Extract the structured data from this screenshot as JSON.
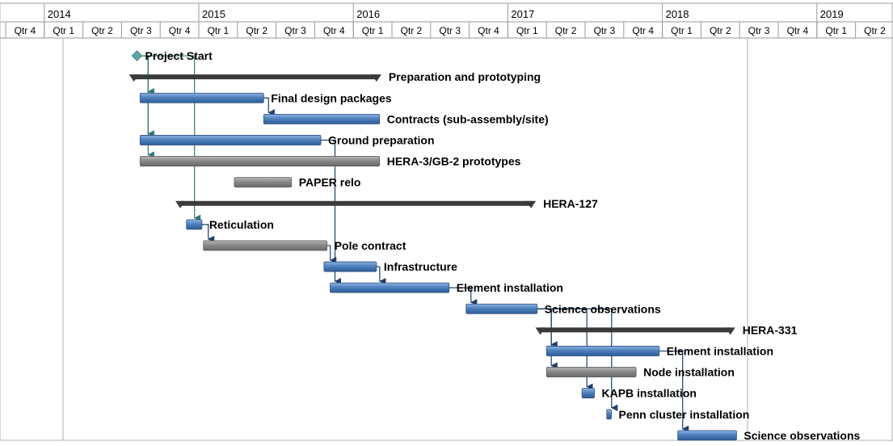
{
  "chart_data": {
    "type": "gantt",
    "title": "",
    "timescale": {
      "years": [
        "2014",
        "2015",
        "2016",
        "2017",
        "2018",
        "2019"
      ],
      "quarters": [
        "Qtr 4",
        "Qtr 1",
        "Qtr 2",
        "Qtr 3",
        "Qtr 4",
        "Qtr 1",
        "Qtr 2",
        "Qtr 3",
        "Qtr 4",
        "Qtr 1",
        "Qtr 2",
        "Qtr 3",
        "Qtr 4",
        "Qtr 1",
        "Qtr 2",
        "Qtr 3",
        "Qtr 4",
        "Qtr 1",
        "Qtr 2",
        "Qtr 3",
        "Qtr 4",
        "Qtr 1",
        "Qtr 2"
      ],
      "range_start": "2013-10",
      "range_end": "2019-07"
    },
    "tasks": [
      {
        "id": 0,
        "name": "Project Start",
        "type": "milestone",
        "start": 2014.6
      },
      {
        "id": 1,
        "name": "Preparation and prototyping",
        "type": "summary",
        "start": 2014.58,
        "end": 2016.15
      },
      {
        "id": 2,
        "name": "Final design packages",
        "type": "task",
        "start": 2014.62,
        "end": 2015.42,
        "color": "blue"
      },
      {
        "id": 3,
        "name": "Contracts (sub-assembly/site)",
        "type": "task",
        "start": 2015.42,
        "end": 2016.17,
        "color": "blue"
      },
      {
        "id": 4,
        "name": "Ground preparation",
        "type": "task",
        "start": 2014.62,
        "end": 2015.79,
        "color": "blue"
      },
      {
        "id": 5,
        "name": "HERA-3/GB-2 prototypes",
        "type": "task",
        "start": 2014.62,
        "end": 2016.17,
        "color": "gray"
      },
      {
        "id": 6,
        "name": "PAPER relo",
        "type": "task",
        "start": 2015.23,
        "end": 2015.6,
        "color": "gray"
      },
      {
        "id": 7,
        "name": "HERA-127",
        "type": "summary",
        "start": 2014.88,
        "end": 2017.15
      },
      {
        "id": 8,
        "name": "Reticulation",
        "type": "task",
        "start": 2014.92,
        "end": 2015.02,
        "color": "blue"
      },
      {
        "id": 9,
        "name": "Pole contract",
        "type": "task",
        "start": 2015.03,
        "end": 2015.83,
        "color": "gray"
      },
      {
        "id": 10,
        "name": "Infrastructure",
        "type": "task",
        "start": 2015.81,
        "end": 2016.15,
        "color": "blue"
      },
      {
        "id": 11,
        "name": "Element installation",
        "type": "task",
        "start": 2015.85,
        "end": 2016.62,
        "color": "blue"
      },
      {
        "id": 12,
        "name": "Science observations",
        "type": "task",
        "start": 2016.73,
        "end": 2017.19,
        "color": "blue"
      },
      {
        "id": 13,
        "name": "HERA-331",
        "type": "summary",
        "start": 2017.21,
        "end": 2018.44
      },
      {
        "id": 14,
        "name": "Element installation",
        "type": "task",
        "start": 2017.25,
        "end": 2017.98,
        "color": "blue"
      },
      {
        "id": 15,
        "name": "Node installation",
        "type": "task",
        "start": 2017.25,
        "end": 2017.83,
        "color": "gray"
      },
      {
        "id": 16,
        "name": "KAPB installation",
        "type": "task",
        "start": 2017.48,
        "end": 2017.56,
        "color": "blue"
      },
      {
        "id": 17,
        "name": "Penn cluster installation",
        "type": "task",
        "start": 2017.64,
        "end": 2017.67,
        "color": "blue"
      },
      {
        "id": 18,
        "name": "Science observations",
        "type": "task",
        "start": 2018.1,
        "end": 2018.48,
        "color": "blue"
      }
    ],
    "dependencies": [
      [
        0,
        2
      ],
      [
        0,
        4
      ],
      [
        0,
        5
      ],
      [
        0,
        8
      ],
      [
        2,
        3
      ],
      [
        8,
        9
      ],
      [
        9,
        10
      ],
      [
        4,
        11
      ],
      [
        10,
        11
      ],
      [
        11,
        12
      ],
      [
        12,
        14
      ],
      [
        12,
        15
      ],
      [
        12,
        16
      ],
      [
        12,
        17
      ],
      [
        14,
        18
      ]
    ]
  }
}
